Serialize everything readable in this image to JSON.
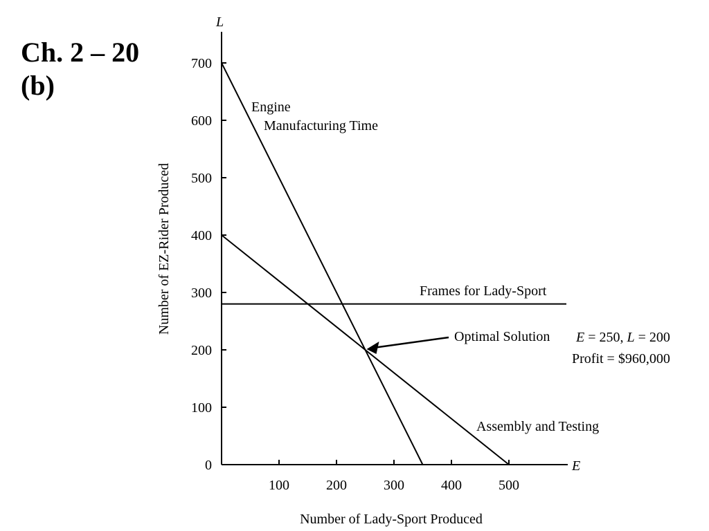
{
  "heading": {
    "line1": "Ch. 2 – 20",
    "line2": "(b)"
  },
  "chart_data": {
    "type": "line",
    "xlabel": "Number of Lady-Sport Produced",
    "ylabel": "Number of EZ-Rider Produced",
    "x_axis_symbol": "E",
    "y_axis_symbol": "L",
    "xlim": [
      0,
      600
    ],
    "ylim": [
      0,
      750
    ],
    "x_ticks": [
      100,
      200,
      300,
      400,
      500
    ],
    "x_tick_labels": [
      "100",
      "200",
      "300",
      "400",
      "500"
    ],
    "y_ticks": [
      0,
      100,
      200,
      300,
      400,
      500,
      600,
      700
    ],
    "y_tick_labels": [
      "0",
      "100",
      "200",
      "300",
      "400",
      "500",
      "600",
      "700"
    ],
    "grid": false,
    "series": [
      {
        "name": "Engine Manufacturing Time",
        "points": [
          [
            0,
            700
          ],
          [
            350,
            0
          ]
        ]
      },
      {
        "name": "Assembly and Testing",
        "points": [
          [
            0,
            400
          ],
          [
            500,
            0
          ]
        ]
      },
      {
        "name": "Frames for Lady-Sport",
        "points": [
          [
            0,
            280
          ],
          [
            600,
            280
          ]
        ]
      }
    ],
    "line_labels": {
      "engine_line1": "Engine",
      "engine_line2": "Manufacturing Time",
      "assembly": "Assembly and Testing",
      "frames": "Frames for Lady-Sport"
    },
    "optimal": {
      "point": [
        250,
        200
      ],
      "label": "Optimal Solution",
      "e_var": "E",
      "e_eq": " = 250, ",
      "l_var": "L",
      "l_eq": " = 200",
      "profit": "Profit = $960,000"
    }
  }
}
